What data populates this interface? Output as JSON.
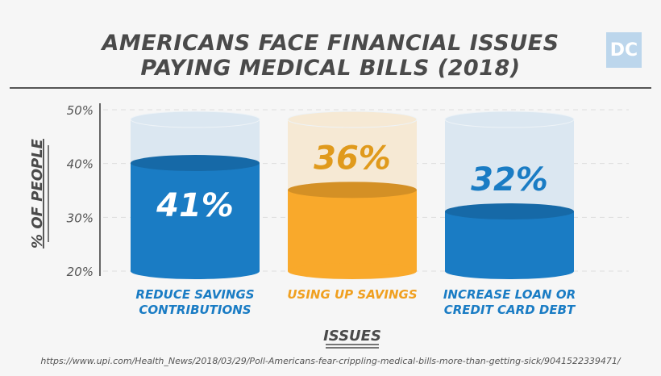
{
  "logo_text": "DC",
  "source": "https://www.upi.com/Health_News/2018/03/29/Poll-Americans-fear-crippling-medical-bills-more-than-getting-sick/9041522339471/",
  "chart_data": {
    "type": "bar",
    "title_lines": [
      "AMERICANS FACE FINANCIAL ISSUES",
      "PAYING MEDICAL BILLS (2018)"
    ],
    "xlabel": "ISSUES",
    "ylabel": "% OF PEOPLE",
    "ylim": [
      20,
      50
    ],
    "yticks": [
      "20%",
      "30%",
      "40%",
      "50%"
    ],
    "yticks_values": [
      20,
      30,
      40,
      50
    ],
    "grid": true,
    "categories": [
      [
        "REDUCE SAVINGS",
        "CONTRIBUTIONS"
      ],
      [
        "USING UP SAVINGS"
      ],
      [
        "INCREASE LOAN OR",
        "CREDIT CARD DEBT"
      ]
    ],
    "values": [
      41,
      36,
      32
    ],
    "data_labels": [
      "41%",
      "36%",
      "32%"
    ],
    "colors": [
      "#1a7cc4",
      "#f9a92b",
      "#1a7cc4"
    ],
    "container_colors": [
      "#dbe7f1",
      "#f6e9d4",
      "#dbe7f1"
    ],
    "label_colors": [
      "#ffffff",
      "#e09a1c",
      "#1a7cc4"
    ]
  }
}
